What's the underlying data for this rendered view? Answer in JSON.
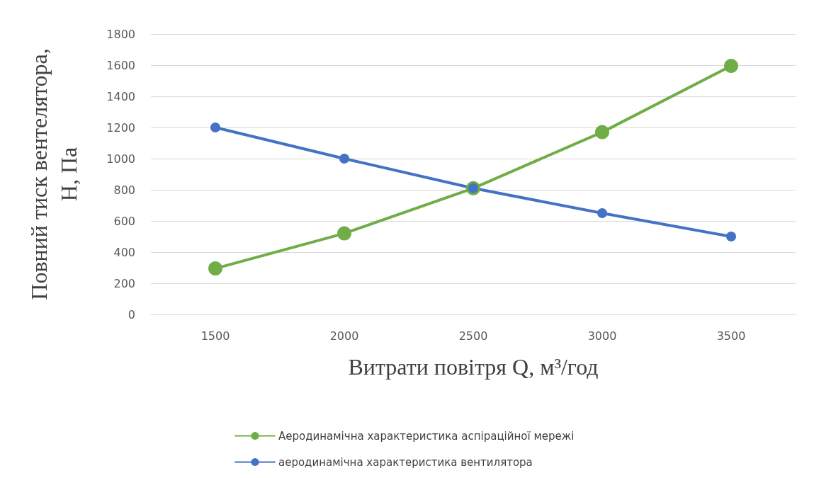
{
  "chart_data": {
    "type": "line",
    "xlabel": "Витрати повітря Q, м³/год",
    "ylabel": "Повний тиск вентелятора,\nН, Па",
    "categories": [
      "1500",
      "2000",
      "2500",
      "3000",
      "3500"
    ],
    "series": [
      {
        "name": "Аеродинамічна характеристика аспіраційної мережі",
        "color": "#70ad47",
        "values": [
          295,
          520,
          810,
          1170,
          1595
        ]
      },
      {
        "name": "аеродинамічна характеристика вентилятора",
        "color": "#4472c4",
        "values": [
          1200,
          1000,
          810,
          650,
          500
        ]
      }
    ],
    "ylim": [
      0,
      1800
    ],
    "yticks": [
      0,
      200,
      400,
      600,
      800,
      1000,
      1200,
      1400,
      1600,
      1800
    ],
    "grid": "y",
    "legend": "bottom",
    "marker": "circle",
    "line_style": "solid"
  }
}
